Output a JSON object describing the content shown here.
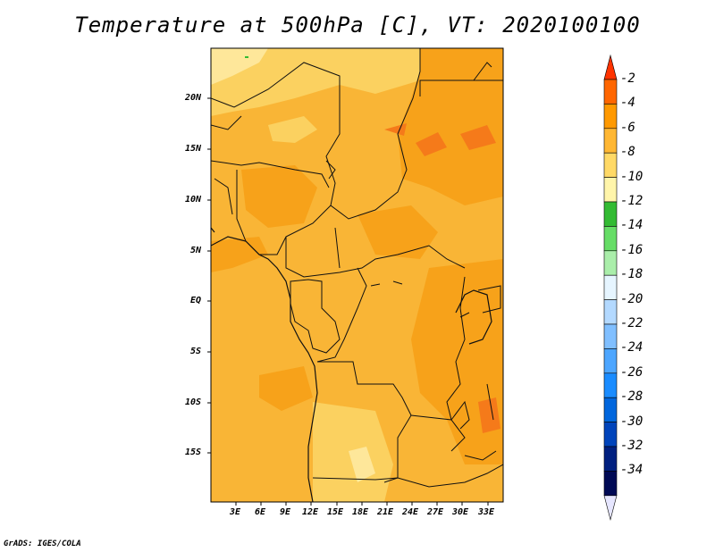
{
  "title": "Temperature at 500hPa [C], VT: 2020100100",
  "footer": "GrADS: IGES/COLA",
  "lat_ticks": [
    "20N",
    "15N",
    "10N",
    "5N",
    "EQ",
    "5S",
    "10S",
    "15S"
  ],
  "lon_ticks": [
    "3E",
    "6E",
    "9E",
    "12E",
    "15E",
    "18E",
    "21E",
    "24E",
    "27E",
    "30E",
    "33E"
  ],
  "colorbar": {
    "labels": [
      "-2",
      "-4",
      "-6",
      "-8",
      "-10",
      "-12",
      "-14",
      "-16",
      "-18",
      "-20",
      "-22",
      "-24",
      "-26",
      "-28",
      "-30",
      "-32",
      "-34"
    ],
    "colors": [
      "#ff3300",
      "#ff6600",
      "#ff9900",
      "#ffb733",
      "#ffd966",
      "#fff5aa",
      "#33bb33",
      "#66dd66",
      "#aaeeaa",
      "#e6f5ff",
      "#b3d9ff",
      "#80bfff",
      "#4da6ff",
      "#1a8cff",
      "#0066dd",
      "#0044bb",
      "#002080",
      "#000a55",
      "#e6e6ff"
    ]
  },
  "map": {
    "base_color": "#f9b536",
    "warm_color": "#f7a21a",
    "hot_color": "#f57a1a",
    "cool_color": "#fbd160",
    "cooler_color": "#fee79a"
  }
}
